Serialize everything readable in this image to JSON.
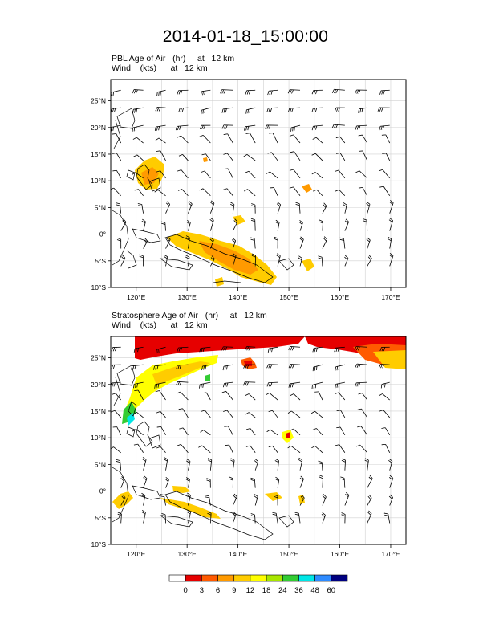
{
  "title": "2014-01-18_15:00:00",
  "panels": [
    {
      "field_label": "PBL Age of Air   (hr)     at   12 km",
      "wind_label": "Wind    (kts)      at   12 km",
      "lon_ticks": [
        "120°E",
        "130°E",
        "140°E",
        "150°E",
        "160°E",
        "170°E"
      ],
      "lat_ticks": [
        "25°N",
        "20°N",
        "15°N",
        "10°N",
        "5°N",
        "0°",
        "5°S",
        "10°S"
      ]
    },
    {
      "field_label": "Stratosphere Age of Air   (hr)     at   12 km",
      "wind_label": "Wind    (kts)      at   12 km",
      "lon_ticks": [
        "120°E",
        "130°E",
        "140°E",
        "150°E",
        "160°E",
        "170°E"
      ],
      "lat_ticks": [
        "25°N",
        "20°N",
        "15°N",
        "10°N",
        "5°N",
        "0°",
        "5°S",
        "10°S"
      ]
    }
  ],
  "colorbar": {
    "labels": [
      "0",
      "3",
      "6",
      "9",
      "12",
      "18",
      "24",
      "36",
      "48",
      "60"
    ],
    "colors": [
      "#ffffff",
      "#e60000",
      "#ff5a00",
      "#ff9a00",
      "#ffcc00",
      "#ffff00",
      "#a8e600",
      "#33cc33",
      "#00e6e6",
      "#2e8bff",
      "#000080"
    ]
  },
  "map": {
    "lon_range": [
      115,
      173
    ],
    "lat_range": [
      -10,
      29
    ],
    "grid_interval_deg": 5,
    "land_color": "none",
    "coastline_color": "#000000"
  }
}
